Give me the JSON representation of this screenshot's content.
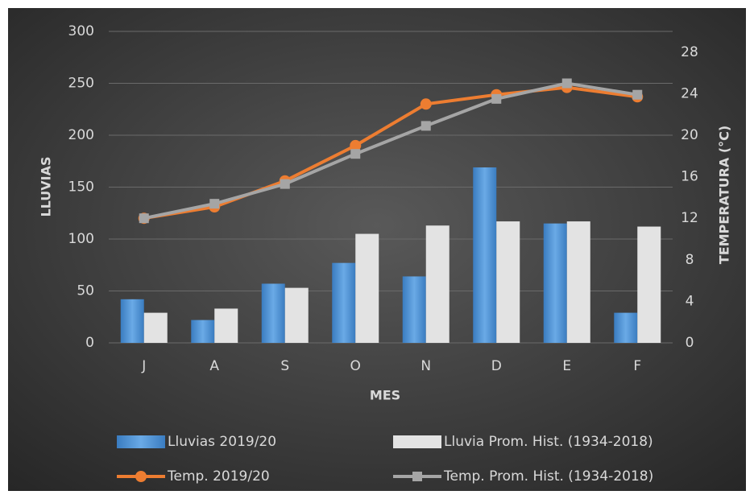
{
  "chart_data": {
    "type": "bar",
    "x_label": "MES",
    "y_label": "LLUVIAS",
    "y2_label": "TEMPERATURA (°C)",
    "categories": [
      "J",
      "A",
      "S",
      "O",
      "N",
      "D",
      "E",
      "F"
    ],
    "series": [
      {
        "name": "Lluvias 2019/20",
        "type": "bar",
        "color": "#5b9bd5",
        "values": [
          42,
          22,
          57,
          77,
          64,
          169,
          115,
          29
        ]
      },
      {
        "name": "Lluvia Prom. Hist. (1934-2018)",
        "type": "bar",
        "color": "#e3e3e3",
        "values": [
          29,
          33,
          53,
          105,
          113,
          117,
          117,
          112
        ]
      },
      {
        "name": "Temp. 2019/20",
        "type": "line",
        "marker": "circle",
        "axis": "y2",
        "color": "#ed7d31",
        "values": [
          12.0,
          13.1,
          15.6,
          19.0,
          23.0,
          23.9,
          24.6,
          23.7
        ]
      },
      {
        "name": "Temp. Prom. Hist. (1934-2018)",
        "type": "line",
        "marker": "square",
        "axis": "y2",
        "color": "#a5a5a5",
        "values": [
          12.0,
          13.4,
          15.3,
          18.2,
          20.9,
          23.5,
          25.0,
          23.9
        ]
      }
    ],
    "ylim": [
      0,
      300
    ],
    "yticks": [
      0,
      50,
      100,
      150,
      200,
      250,
      300
    ],
    "y2lim": [
      0,
      30
    ],
    "y2ticks": [
      0,
      4,
      8,
      12,
      16,
      20,
      24,
      28
    ],
    "grid": true,
    "legend": "bottom"
  }
}
